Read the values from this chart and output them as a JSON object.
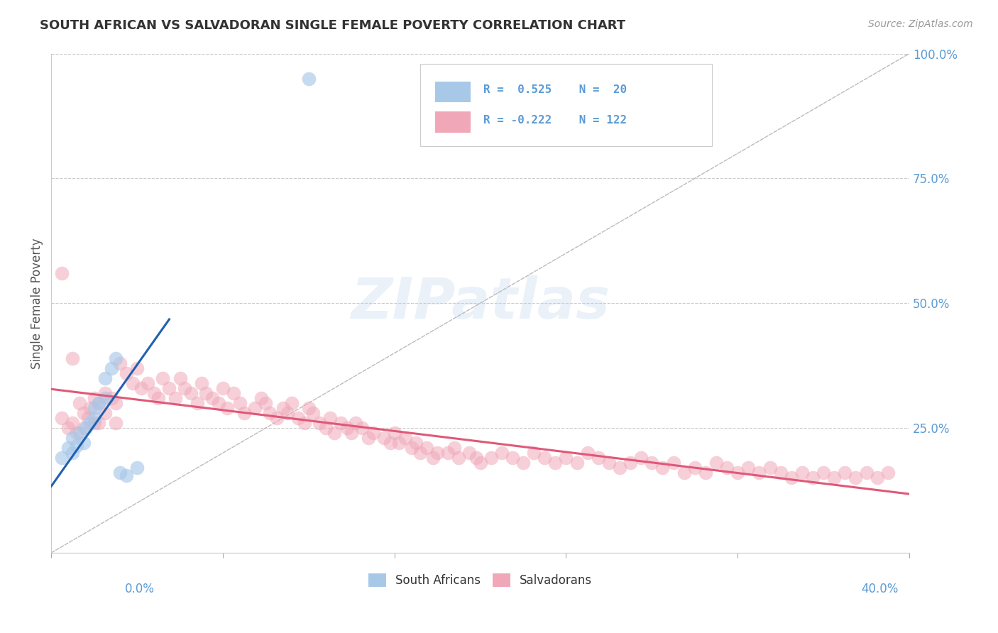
{
  "title": "SOUTH AFRICAN VS SALVADORAN SINGLE FEMALE POVERTY CORRELATION CHART",
  "source": "Source: ZipAtlas.com",
  "ylabel": "Single Female Poverty",
  "r1": 0.525,
  "n1": 20,
  "r2": -0.222,
  "n2": 122,
  "blue_color": "#a8c8e8",
  "pink_color": "#f0a8b8",
  "blue_line_color": "#2060b0",
  "pink_line_color": "#e05878",
  "title_color": "#333333",
  "axis_label_color": "#5b9bd5",
  "background_color": "#ffffff",
  "xlim": [
    0.0,
    0.4
  ],
  "ylim": [
    0.0,
    1.0
  ],
  "sa_x": [
    0.005,
    0.008,
    0.01,
    0.01,
    0.012,
    0.013,
    0.015,
    0.016,
    0.018,
    0.02,
    0.02,
    0.022,
    0.025,
    0.025,
    0.028,
    0.03,
    0.032,
    0.035,
    0.04,
    0.12
  ],
  "sa_y": [
    0.19,
    0.21,
    0.2,
    0.23,
    0.215,
    0.24,
    0.22,
    0.25,
    0.26,
    0.27,
    0.29,
    0.3,
    0.31,
    0.35,
    0.37,
    0.39,
    0.16,
    0.155,
    0.17,
    0.95
  ],
  "salv_x": [
    0.005,
    0.008,
    0.01,
    0.012,
    0.013,
    0.015,
    0.015,
    0.017,
    0.018,
    0.02,
    0.02,
    0.022,
    0.022,
    0.025,
    0.025,
    0.028,
    0.03,
    0.03,
    0.032,
    0.035,
    0.038,
    0.04,
    0.042,
    0.045,
    0.048,
    0.05,
    0.052,
    0.055,
    0.058,
    0.06,
    0.062,
    0.065,
    0.068,
    0.07,
    0.072,
    0.075,
    0.078,
    0.08,
    0.082,
    0.085,
    0.088,
    0.09,
    0.095,
    0.098,
    0.1,
    0.102,
    0.105,
    0.108,
    0.11,
    0.112,
    0.115,
    0.118,
    0.12,
    0.122,
    0.125,
    0.128,
    0.13,
    0.132,
    0.135,
    0.138,
    0.14,
    0.142,
    0.145,
    0.148,
    0.15,
    0.155,
    0.158,
    0.16,
    0.162,
    0.165,
    0.168,
    0.17,
    0.172,
    0.175,
    0.178,
    0.18,
    0.185,
    0.188,
    0.19,
    0.195,
    0.198,
    0.2,
    0.205,
    0.21,
    0.215,
    0.22,
    0.225,
    0.23,
    0.235,
    0.24,
    0.245,
    0.25,
    0.255,
    0.26,
    0.265,
    0.27,
    0.275,
    0.28,
    0.285,
    0.29,
    0.295,
    0.3,
    0.305,
    0.31,
    0.315,
    0.32,
    0.325,
    0.33,
    0.335,
    0.34,
    0.345,
    0.35,
    0.355,
    0.36,
    0.365,
    0.37,
    0.375,
    0.38,
    0.385,
    0.39,
    0.005,
    0.01
  ],
  "salv_y": [
    0.27,
    0.25,
    0.26,
    0.24,
    0.3,
    0.25,
    0.28,
    0.27,
    0.29,
    0.26,
    0.31,
    0.26,
    0.3,
    0.28,
    0.32,
    0.31,
    0.3,
    0.26,
    0.38,
    0.36,
    0.34,
    0.37,
    0.33,
    0.34,
    0.32,
    0.31,
    0.35,
    0.33,
    0.31,
    0.35,
    0.33,
    0.32,
    0.3,
    0.34,
    0.32,
    0.31,
    0.3,
    0.33,
    0.29,
    0.32,
    0.3,
    0.28,
    0.29,
    0.31,
    0.3,
    0.28,
    0.27,
    0.29,
    0.28,
    0.3,
    0.27,
    0.26,
    0.29,
    0.28,
    0.26,
    0.25,
    0.27,
    0.24,
    0.26,
    0.25,
    0.24,
    0.26,
    0.25,
    0.23,
    0.24,
    0.23,
    0.22,
    0.24,
    0.22,
    0.23,
    0.21,
    0.22,
    0.2,
    0.21,
    0.19,
    0.2,
    0.2,
    0.21,
    0.19,
    0.2,
    0.19,
    0.18,
    0.19,
    0.2,
    0.19,
    0.18,
    0.2,
    0.19,
    0.18,
    0.19,
    0.18,
    0.2,
    0.19,
    0.18,
    0.17,
    0.18,
    0.19,
    0.18,
    0.17,
    0.18,
    0.16,
    0.17,
    0.16,
    0.18,
    0.17,
    0.16,
    0.17,
    0.16,
    0.17,
    0.16,
    0.15,
    0.16,
    0.15,
    0.16,
    0.15,
    0.16,
    0.15,
    0.16,
    0.15,
    0.16,
    0.56,
    0.39
  ]
}
